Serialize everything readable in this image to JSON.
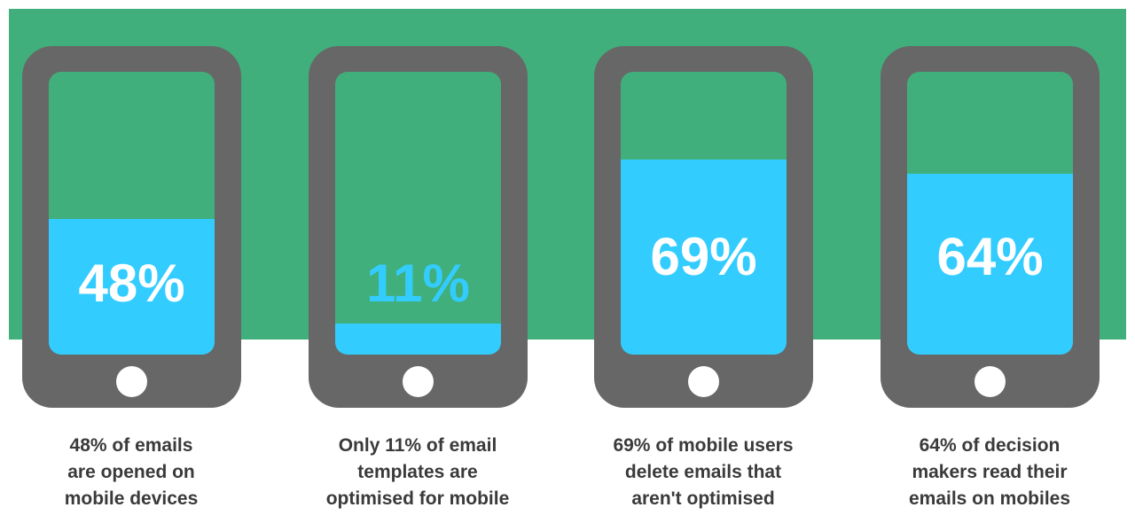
{
  "colors": {
    "background_band": "#41af7b",
    "phone_body": "#676767",
    "fill": "#33ccff",
    "text_dark": "#3a3a3a"
  },
  "items": [
    {
      "percent": 48,
      "label": "48%",
      "label_color": "#ffffff",
      "caption": [
        "48% of emails",
        "are opened on",
        "mobile devices"
      ]
    },
    {
      "percent": 11,
      "label": "11%",
      "label_color": "#33ccff",
      "caption": [
        "Only 11% of email",
        "templates are",
        "optimised for mobile"
      ]
    },
    {
      "percent": 69,
      "label": "69%",
      "label_color": "#ffffff",
      "caption": [
        "69% of mobile users",
        "delete emails that",
        "aren't optimised"
      ]
    },
    {
      "percent": 64,
      "label": "64%",
      "label_color": "#ffffff",
      "caption": [
        "64% of decision",
        "makers read their",
        "emails on mobiles"
      ]
    }
  ]
}
